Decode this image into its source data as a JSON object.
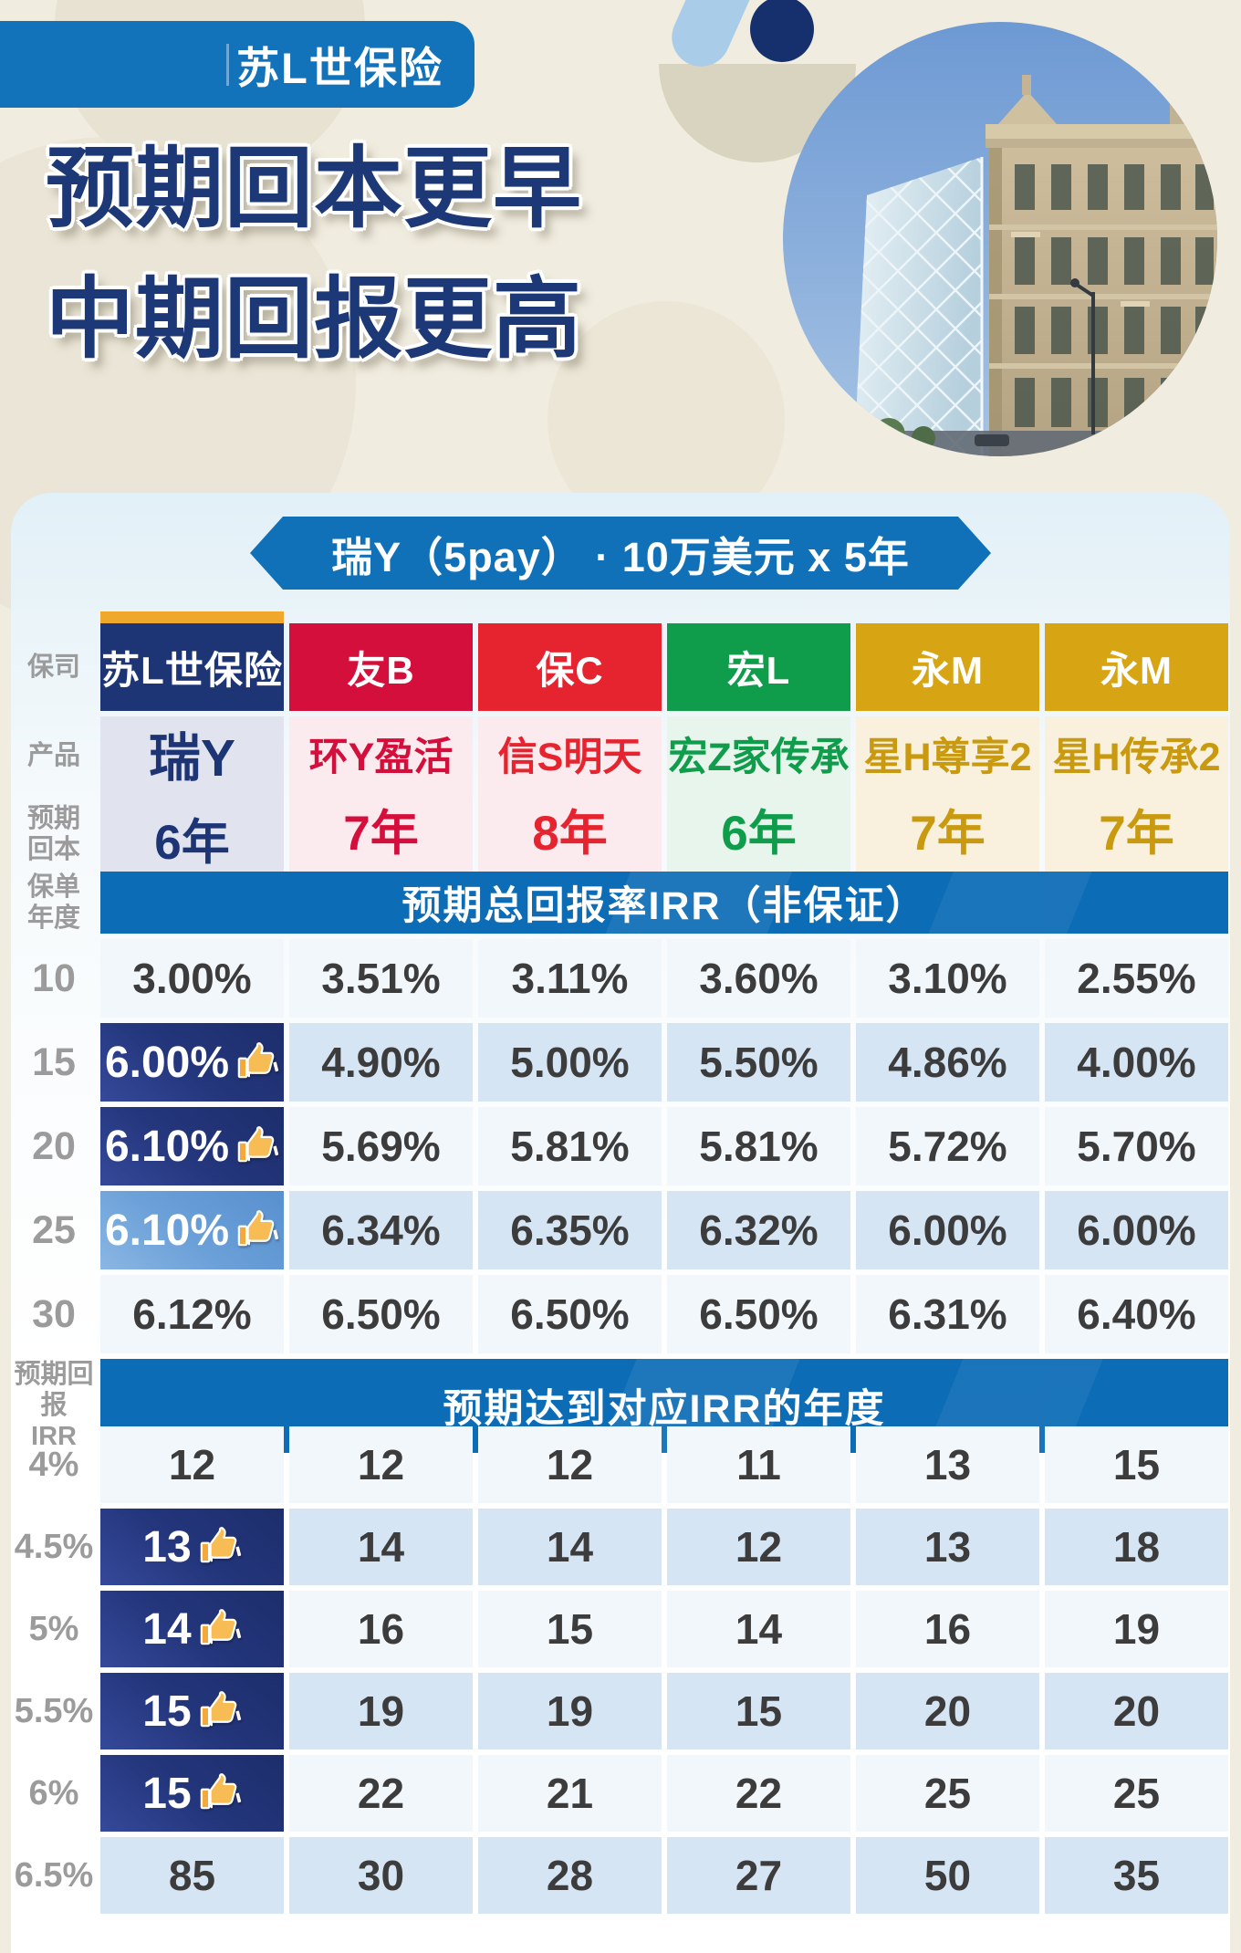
{
  "brand": {
    "badge": "苏L世保险"
  },
  "title": {
    "line1": "预期回本更早",
    "line2": "中期回报更高"
  },
  "banner": {
    "text": "瑞Y（5pay） ·  10万美元 x 5年"
  },
  "icons": {
    "highlight_icon": "thumbs-up-icon",
    "photo": "building-photo-circle"
  },
  "table": {
    "row_labels": {
      "company": "保司",
      "product": "产品",
      "payback": "预期\n回本",
      "policy_year": "保单\n年度",
      "target_irr": "预期回报\nIRR"
    },
    "section1_header": "预期总回报率IRR（非保证）",
    "section2_header": "预期达到对应IRR的年度",
    "companies": [
      {
        "name": "苏L世保险",
        "product": "瑞Y",
        "payback": "6年"
      },
      {
        "name": "友B",
        "product": "环Y盈活",
        "payback": "7年"
      },
      {
        "name": "保C",
        "product": "信S明天",
        "payback": "8年"
      },
      {
        "name": "宏L",
        "product": "宏Z家传承",
        "payback": "6年"
      },
      {
        "name": "永M",
        "product": "星H尊享2",
        "payback": "7年"
      },
      {
        "name": "永M",
        "product": "星H传承2",
        "payback": "7年"
      }
    ],
    "irr_rows": [
      {
        "label": "10",
        "values": [
          "3.00%",
          "3.51%",
          "3.11%",
          "3.60%",
          "3.10%",
          "2.55%"
        ],
        "col1_style": "none",
        "col1_thumb": false
      },
      {
        "label": "15",
        "values": [
          "6.00%",
          "4.90%",
          "5.00%",
          "5.50%",
          "4.86%",
          "4.00%"
        ],
        "col1_style": "dark",
        "col1_thumb": true
      },
      {
        "label": "20",
        "values": [
          "6.10%",
          "5.69%",
          "5.81%",
          "5.81%",
          "5.72%",
          "5.70%"
        ],
        "col1_style": "dark",
        "col1_thumb": true
      },
      {
        "label": "25",
        "values": [
          "6.10%",
          "6.34%",
          "6.35%",
          "6.32%",
          "6.00%",
          "6.00%"
        ],
        "col1_style": "light",
        "col1_thumb": true
      },
      {
        "label": "30",
        "values": [
          "6.12%",
          "6.50%",
          "6.50%",
          "6.50%",
          "6.31%",
          "6.40%"
        ],
        "col1_style": "none",
        "col1_thumb": false
      }
    ],
    "year_rows": [
      {
        "label": "4%",
        "values": [
          "12",
          "12",
          "12",
          "11",
          "13",
          "15"
        ],
        "col1_style": "none",
        "col1_thumb": false
      },
      {
        "label": "4.5%",
        "values": [
          "13",
          "14",
          "14",
          "12",
          "13",
          "18"
        ],
        "col1_style": "dark",
        "col1_thumb": true
      },
      {
        "label": "5%",
        "values": [
          "14",
          "16",
          "15",
          "14",
          "16",
          "19"
        ],
        "col1_style": "dark",
        "col1_thumb": true
      },
      {
        "label": "5.5%",
        "values": [
          "15",
          "19",
          "19",
          "15",
          "20",
          "20"
        ],
        "col1_style": "dark",
        "col1_thumb": true
      },
      {
        "label": "6%",
        "values": [
          "15",
          "22",
          "21",
          "22",
          "25",
          "25"
        ],
        "col1_style": "dark",
        "col1_thumb": true
      },
      {
        "label": "6.5%",
        "values": [
          "85",
          "30",
          "28",
          "27",
          "50",
          "35"
        ],
        "col1_style": "none",
        "col1_thumb": false
      }
    ]
  },
  "colors": {
    "page_bg": "#f0ecdf",
    "badge_blue": "#1272ba",
    "title_navy": "#1d3876",
    "accent_gold": "#efa72c",
    "band_blue": "#0d6cb6",
    "row_light": "#f2f7fc",
    "row_blue": "#d6e5f4",
    "label_gray": "#9b9b9b",
    "value_text": "#3c3c3c",
    "highlight_dark": "#1e2f6e",
    "highlight_light": "#6ba0d8",
    "company_bg": [
      "#1d3575",
      "#d50f3c",
      "#e5242f",
      "#0f9d4b",
      "#d7a513",
      "#d7a513"
    ],
    "product_bg": [
      "#e1e4ef",
      "#fcebee",
      "#fcebee",
      "#e8f5ec",
      "#f9f1de",
      "#f9f1de"
    ],
    "product_text": [
      "#1d3575",
      "#d50f3c",
      "#e5242f",
      "#0f9d4b",
      "#c99a10",
      "#c99a10"
    ]
  },
  "chart_data": {
    "type": "table",
    "title": "瑞Y（5pay） · 10万美元 x 5年",
    "subtitle": "预期回本更早 中期回报更高",
    "columns": [
      "苏L世保险 瑞Y",
      "友B 环Y盈活",
      "保C 信S明天",
      "宏L 宏Z家传承",
      "永M 星H尊享2",
      "永M 星H传承2"
    ],
    "expected_breakeven_years": [
      6,
      7,
      8,
      6,
      7,
      7
    ],
    "irr_by_policy_year": {
      "10": [
        3.0,
        3.51,
        3.11,
        3.6,
        3.1,
        2.55
      ],
      "15": [
        6.0,
        4.9,
        5.0,
        5.5,
        4.86,
        4.0
      ],
      "20": [
        6.1,
        5.69,
        5.81,
        5.81,
        5.72,
        5.7
      ],
      "25": [
        6.1,
        6.34,
        6.35,
        6.32,
        6.0,
        6.0
      ],
      "30": [
        6.12,
        6.5,
        6.5,
        6.5,
        6.31,
        6.4
      ]
    },
    "policy_year_to_reach_irr": {
      "4%": [
        12,
        12,
        12,
        11,
        13,
        15
      ],
      "4.5%": [
        13,
        14,
        14,
        12,
        13,
        18
      ],
      "5%": [
        14,
        16,
        15,
        14,
        16,
        19
      ],
      "5.5%": [
        15,
        19,
        19,
        15,
        20,
        20
      ],
      "6%": [
        15,
        22,
        21,
        22,
        25,
        25
      ],
      "6.5%": [
        85,
        30,
        28,
        27,
        50,
        35
      ]
    },
    "highlighted_column": "苏L世保险 瑞Y"
  }
}
